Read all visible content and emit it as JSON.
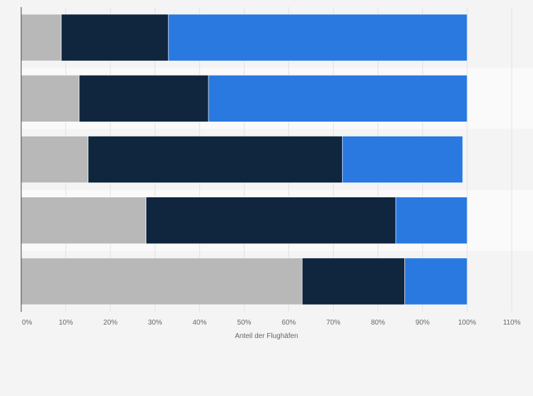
{
  "chart_data": {
    "type": "bar",
    "orientation": "horizontal",
    "stacked": true,
    "title": "",
    "xlabel": "Anteil der Flughäfen",
    "ylabel": "",
    "xlim": [
      0,
      110
    ],
    "x_ticks": [
      0,
      10,
      20,
      30,
      40,
      50,
      60,
      70,
      80,
      90,
      100,
      110
    ],
    "x_tick_labels": [
      "0%",
      "10%",
      "20%",
      "30%",
      "40%",
      "50%",
      "60%",
      "70%",
      "80%",
      "90%",
      "100%",
      "110%"
    ],
    "grid": true,
    "legend": "none",
    "categories": [
      "",
      "",
      "",
      "",
      ""
    ],
    "series": [
      {
        "values": [
          9,
          13,
          15,
          28,
          63
        ],
        "color": "#b8b8b8"
      },
      {
        "values": [
          24,
          29,
          57,
          56,
          23
        ],
        "color": "#10263f"
      },
      {
        "values": [
          67,
          58,
          27,
          16,
          14
        ],
        "color": "#2979e0"
      }
    ]
  }
}
